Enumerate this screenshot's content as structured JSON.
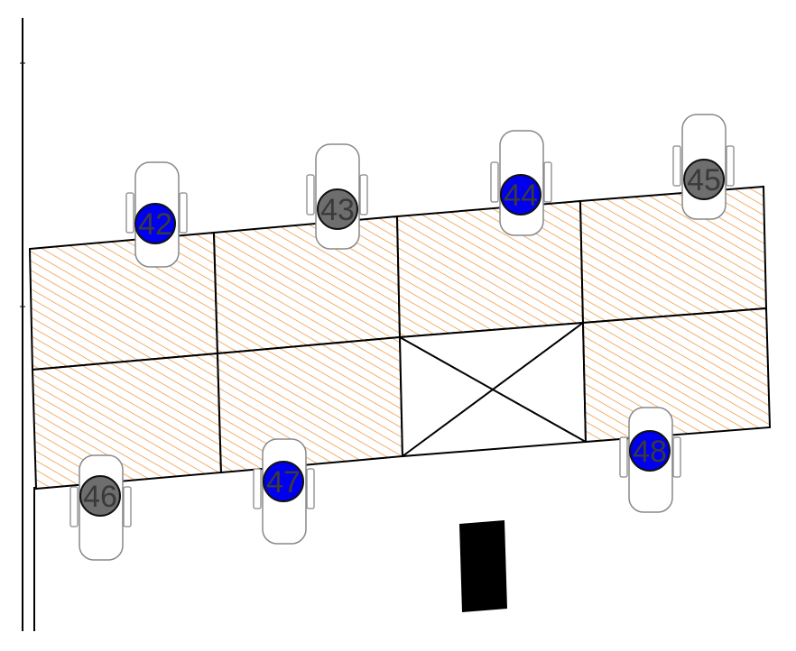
{
  "floorplan": {
    "colors": {
      "available": "#0000ee",
      "occupied": "#6e6e6e",
      "desk_hatch": "#f0b070",
      "outline": "#000000",
      "column": "#000000"
    },
    "seats": [
      {
        "id": "42",
        "status": "available"
      },
      {
        "id": "43",
        "status": "occupied"
      },
      {
        "id": "44",
        "status": "available"
      },
      {
        "id": "45",
        "status": "occupied"
      },
      {
        "id": "46",
        "status": "occupied"
      },
      {
        "id": "47",
        "status": "available"
      },
      {
        "id": "48",
        "status": "available"
      }
    ]
  }
}
